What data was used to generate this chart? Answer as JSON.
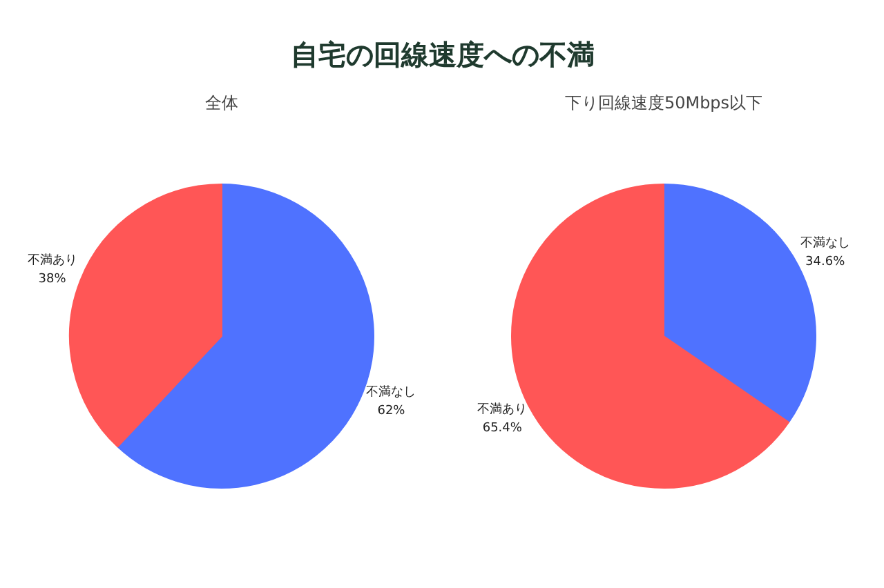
{
  "chart_data": [
    {
      "type": "pie",
      "title": "自宅の回線速度への不満",
      "subtitle": "全体",
      "categories": [
        "不満なし",
        "不満あり"
      ],
      "values": [
        62,
        38
      ],
      "colors": [
        "#4f72ff",
        "#ff5656"
      ],
      "value_labels": [
        "62%",
        "38%"
      ]
    },
    {
      "type": "pie",
      "subtitle": "下り回線速度50Mbps以下",
      "categories": [
        "不満なし",
        "不満あり"
      ],
      "values": [
        34.6,
        65.4
      ],
      "colors": [
        "#4f72ff",
        "#ff5656"
      ],
      "value_labels": [
        "34.6%",
        "65.4%"
      ]
    }
  ]
}
